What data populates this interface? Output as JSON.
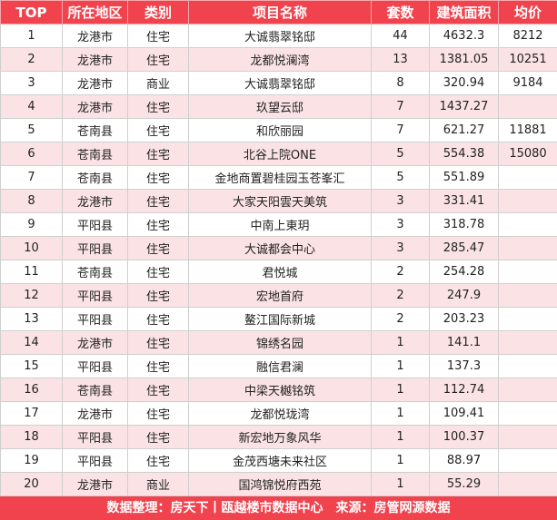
{
  "table": {
    "headers": [
      "TOP",
      "所在地区",
      "类别",
      "项目名称",
      "套数",
      "建筑面积",
      "均价"
    ],
    "rows": [
      [
        "1",
        "龙港市",
        "住宅",
        "大诚翡翠铭邸",
        "44",
        "4632.3",
        "8212"
      ],
      [
        "2",
        "龙港市",
        "住宅",
        "龙都悦澜湾",
        "13",
        "1381.05",
        "10251"
      ],
      [
        "3",
        "龙港市",
        "商业",
        "大诚翡翠铭邸",
        "8",
        "320.94",
        "9184"
      ],
      [
        "4",
        "龙港市",
        "住宅",
        "玖望云邸",
        "7",
        "1437.27",
        ""
      ],
      [
        "5",
        "苍南县",
        "住宅",
        "和欣丽园",
        "7",
        "621.27",
        "11881"
      ],
      [
        "6",
        "苍南县",
        "住宅",
        "北谷上院ONE",
        "5",
        "554.38",
        "15080"
      ],
      [
        "7",
        "苍南县",
        "住宅",
        "金地商置碧桂园玉苍峯汇",
        "5",
        "551.89",
        ""
      ],
      [
        "8",
        "龙港市",
        "住宅",
        "大家天阳雲天美筑",
        "3",
        "331.41",
        ""
      ],
      [
        "9",
        "平阳县",
        "住宅",
        "中南上東玥",
        "3",
        "318.78",
        ""
      ],
      [
        "10",
        "平阳县",
        "住宅",
        "大诚都会中心",
        "3",
        "285.47",
        ""
      ],
      [
        "11",
        "苍南县",
        "住宅",
        "君悦城",
        "2",
        "254.28",
        ""
      ],
      [
        "12",
        "平阳县",
        "住宅",
        "宏地首府",
        "2",
        "247.9",
        ""
      ],
      [
        "13",
        "平阳县",
        "住宅",
        "鳌江国际新城",
        "2",
        "203.23",
        ""
      ],
      [
        "14",
        "龙港市",
        "住宅",
        "锦绣名园",
        "1",
        "141.1",
        ""
      ],
      [
        "15",
        "平阳县",
        "住宅",
        "融信君澜",
        "1",
        "137.3",
        ""
      ],
      [
        "16",
        "苍南县",
        "住宅",
        "中梁天樾铭筑",
        "1",
        "112.74",
        ""
      ],
      [
        "17",
        "龙港市",
        "住宅",
        "龙都悦珑湾",
        "1",
        "109.41",
        ""
      ],
      [
        "18",
        "平阳县",
        "住宅",
        "新宏地万象风华",
        "1",
        "100.37",
        ""
      ],
      [
        "19",
        "平阳县",
        "住宅",
        "金茂西塘未来社区",
        "1",
        "88.97",
        ""
      ],
      [
        "20",
        "龙港市",
        "商业",
        "国鸿锦悦府西苑",
        "1",
        "55.29",
        ""
      ]
    ]
  },
  "footer": {
    "text": "数据整理：房天下丨瓯越楼市数据中心　来源：房管网源数据"
  },
  "colors": {
    "header_bg": "#f0434e",
    "stripe_bg": "#fbe3e5"
  }
}
